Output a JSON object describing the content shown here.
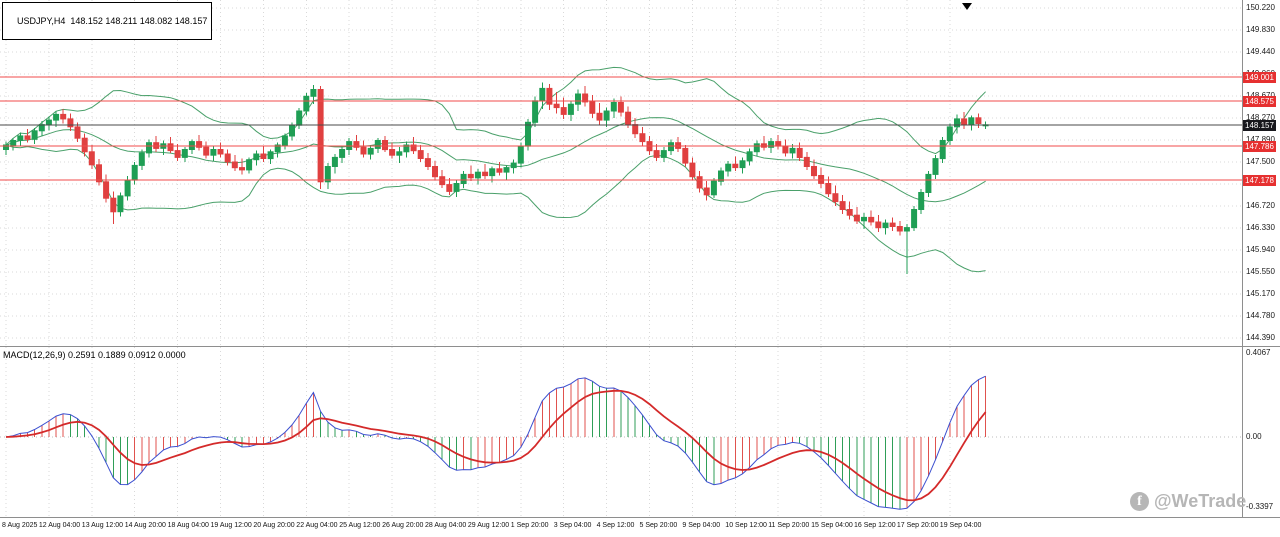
{
  "header": {
    "symbol_info": "USDJPY,H4  148.152 148.211 148.082 148.157"
  },
  "macd": {
    "label": "MACD(12,26,9) 0.2591 0.1889 0.0912 0.0000",
    "axis": {
      "top": "0.4067",
      "zero": "0.00",
      "bottom": "-0.3397"
    }
  },
  "watermark": {
    "text": "@WeTrade",
    "icon": "facebook-icon"
  },
  "price_axis": {
    "ticks": [
      "150.220",
      "149.830",
      "149.440",
      "149.060",
      "148.670",
      "148.270",
      "147.890",
      "147.500",
      "147.110",
      "146.720",
      "146.330",
      "145.940",
      "145.550",
      "145.170",
      "144.780",
      "144.390"
    ],
    "level_labels": [
      "149.001",
      "148.575",
      "147.786",
      "147.178"
    ],
    "bid_label": "148.157"
  },
  "time_axis": {
    "labels": [
      "8 Aug 2025",
      "12 Aug 04:00",
      "13 Aug 12:00",
      "14 Aug 20:00",
      "18 Aug 04:00",
      "19 Aug 12:00",
      "20 Aug 20:00",
      "22 Aug 04:00",
      "25 Aug 12:00",
      "26 Aug 20:00",
      "28 Aug 04:00",
      "29 Aug 12:00",
      "1 Sep 20:00",
      "3 Sep 04:00",
      "4 Sep 12:00",
      "5 Sep 20:00",
      "9 Sep 04:00",
      "10 Sep 12:00",
      "11 Sep 20:00",
      "15 Sep 04:00",
      "16 Sep 12:00",
      "17 Sep 20:00",
      "19 Sep 04:00"
    ]
  },
  "colors": {
    "up": "#1f9e54",
    "down": "#e04040",
    "bollinger": "#4aa06a",
    "grid": "#d9d9d9",
    "level_line": "#f04b4b",
    "bid_line": "#4a4a4a",
    "macd_line": "#3c50d0",
    "signal_line": "#d42a2a",
    "hist_rising": "#e0524e",
    "hist_falling": "#2f9e57",
    "level_label_bg": "#e63030",
    "bid_label_bg": "#17171c",
    "watermark": "#b6b6b6"
  },
  "chart_data": {
    "type": "candlestick",
    "symbol": "USDJPY",
    "timeframe": "H4",
    "ylim": [
      144.39,
      150.22
    ],
    "grid": true,
    "label_every": 6,
    "bollinger": {
      "period": 20,
      "deviation": 2
    },
    "macd": {
      "fast": 12,
      "slow": 26,
      "signal": 9,
      "range": [
        -0.3397,
        0.4067
      ]
    },
    "levels": [
      149.001,
      148.575,
      147.786,
      147.178
    ],
    "bid": 148.157,
    "ohlc_current": [
      148.152,
      148.211,
      148.082,
      148.157
    ],
    "candles": [
      [
        147.72,
        147.86,
        147.62,
        147.8
      ],
      [
        147.8,
        147.92,
        147.7,
        147.88
      ],
      [
        147.88,
        148.02,
        147.78,
        147.96
      ],
      [
        147.96,
        148.08,
        147.84,
        147.9
      ],
      [
        147.9,
        148.1,
        147.82,
        148.05
      ],
      [
        148.05,
        148.22,
        147.96,
        148.16
      ],
      [
        148.16,
        148.3,
        148.06,
        148.24
      ],
      [
        148.24,
        148.4,
        148.12,
        148.34
      ],
      [
        148.34,
        148.44,
        148.18,
        148.26
      ],
      [
        148.26,
        148.36,
        148.05,
        148.12
      ],
      [
        148.12,
        148.2,
        147.85,
        147.92
      ],
      [
        147.92,
        148.0,
        147.6,
        147.68
      ],
      [
        147.68,
        147.8,
        147.38,
        147.45
      ],
      [
        147.45,
        147.55,
        147.08,
        147.15
      ],
      [
        147.15,
        147.28,
        146.78,
        146.86
      ],
      [
        146.86,
        146.98,
        146.4,
        146.62
      ],
      [
        146.62,
        146.96,
        146.54,
        146.9
      ],
      [
        146.9,
        147.25,
        146.82,
        147.18
      ],
      [
        147.18,
        147.5,
        147.1,
        147.44
      ],
      [
        147.44,
        147.72,
        147.36,
        147.66
      ],
      [
        147.66,
        147.9,
        147.58,
        147.84
      ],
      [
        147.84,
        147.96,
        147.68,
        147.74
      ],
      [
        147.74,
        147.88,
        147.62,
        147.82
      ],
      [
        147.82,
        147.94,
        147.66,
        147.7
      ],
      [
        147.7,
        147.82,
        147.52,
        147.58
      ],
      [
        147.58,
        147.76,
        147.5,
        147.72
      ],
      [
        147.72,
        147.9,
        147.64,
        147.86
      ],
      [
        147.86,
        147.98,
        147.7,
        147.76
      ],
      [
        147.76,
        147.86,
        147.56,
        147.62
      ],
      [
        147.62,
        147.78,
        147.52,
        147.72
      ],
      [
        147.72,
        147.84,
        147.58,
        147.64
      ],
      [
        147.64,
        147.72,
        147.44,
        147.5
      ],
      [
        147.5,
        147.62,
        147.34,
        147.4
      ],
      [
        147.4,
        147.56,
        147.28,
        147.36
      ],
      [
        147.36,
        147.58,
        147.3,
        147.54
      ],
      [
        147.54,
        147.7,
        147.44,
        147.64
      ],
      [
        147.64,
        147.78,
        147.5,
        147.56
      ],
      [
        147.56,
        147.72,
        147.46,
        147.68
      ],
      [
        147.68,
        147.84,
        147.58,
        147.8
      ],
      [
        147.8,
        148.0,
        147.72,
        147.96
      ],
      [
        147.96,
        148.2,
        147.88,
        148.15
      ],
      [
        148.15,
        148.45,
        148.08,
        148.4
      ],
      [
        148.4,
        148.72,
        148.32,
        148.66
      ],
      [
        148.66,
        148.86,
        148.52,
        148.78
      ],
      [
        148.78,
        148.84,
        147.02,
        147.15
      ],
      [
        147.15,
        147.48,
        147.02,
        147.42
      ],
      [
        147.42,
        147.64,
        147.3,
        147.58
      ],
      [
        147.58,
        147.78,
        147.48,
        147.72
      ],
      [
        147.72,
        147.92,
        147.62,
        147.86
      ],
      [
        147.86,
        147.98,
        147.7,
        147.76
      ],
      [
        147.76,
        147.88,
        147.58,
        147.64
      ],
      [
        147.64,
        147.8,
        147.54,
        147.74
      ],
      [
        147.74,
        147.92,
        147.66,
        147.88
      ],
      [
        147.88,
        147.96,
        147.68,
        147.72
      ],
      [
        147.72,
        147.84,
        147.56,
        147.62
      ],
      [
        147.62,
        147.76,
        147.48,
        147.68
      ],
      [
        147.68,
        147.86,
        147.58,
        147.8
      ],
      [
        147.8,
        147.94,
        147.64,
        147.7
      ],
      [
        147.7,
        147.8,
        147.5,
        147.56
      ],
      [
        147.56,
        147.66,
        147.36,
        147.42
      ],
      [
        147.42,
        147.52,
        147.18,
        147.24
      ],
      [
        147.24,
        147.36,
        147.04,
        147.1
      ],
      [
        147.1,
        147.22,
        146.92,
        146.98
      ],
      [
        146.98,
        147.18,
        146.88,
        147.12
      ],
      [
        147.12,
        147.34,
        147.04,
        147.28
      ],
      [
        147.28,
        147.44,
        147.16,
        147.22
      ],
      [
        147.22,
        147.38,
        147.1,
        147.32
      ],
      [
        147.32,
        147.46,
        147.2,
        147.26
      ],
      [
        147.26,
        147.42,
        147.14,
        147.38
      ],
      [
        147.38,
        147.5,
        147.26,
        147.32
      ],
      [
        147.32,
        147.44,
        147.18,
        147.4
      ],
      [
        147.4,
        147.54,
        147.3,
        147.48
      ],
      [
        147.48,
        147.84,
        147.4,
        147.78
      ],
      [
        147.78,
        148.26,
        147.7,
        148.2
      ],
      [
        148.2,
        148.66,
        148.12,
        148.58
      ],
      [
        148.58,
        148.9,
        148.44,
        148.8
      ],
      [
        148.8,
        148.88,
        148.42,
        148.52
      ],
      [
        148.52,
        148.74,
        148.36,
        148.46
      ],
      [
        148.46,
        148.64,
        148.26,
        148.34
      ],
      [
        148.34,
        148.58,
        148.22,
        148.52
      ],
      [
        148.52,
        148.78,
        148.4,
        148.7
      ],
      [
        148.7,
        148.84,
        148.48,
        148.56
      ],
      [
        148.56,
        148.68,
        148.28,
        148.36
      ],
      [
        148.36,
        148.54,
        148.16,
        148.24
      ],
      [
        148.24,
        148.46,
        148.12,
        148.4
      ],
      [
        148.4,
        148.62,
        148.28,
        148.55
      ],
      [
        148.55,
        148.66,
        148.3,
        148.38
      ],
      [
        148.38,
        148.48,
        148.1,
        148.16
      ],
      [
        148.16,
        148.28,
        147.92,
        148.0
      ],
      [
        148.0,
        148.12,
        147.78,
        147.86
      ],
      [
        147.86,
        147.96,
        147.62,
        147.7
      ],
      [
        147.7,
        147.82,
        147.52,
        147.58
      ],
      [
        147.58,
        147.76,
        147.5,
        147.7
      ],
      [
        147.7,
        147.9,
        147.62,
        147.84
      ],
      [
        147.84,
        147.94,
        147.68,
        147.74
      ],
      [
        147.74,
        147.8,
        147.42,
        147.48
      ],
      [
        147.48,
        147.58,
        147.18,
        147.24
      ],
      [
        147.24,
        147.34,
        146.96,
        147.04
      ],
      [
        147.04,
        147.16,
        146.82,
        146.92
      ],
      [
        146.92,
        147.22,
        146.86,
        147.16
      ],
      [
        147.16,
        147.4,
        147.08,
        147.34
      ],
      [
        147.34,
        147.52,
        147.24,
        147.46
      ],
      [
        147.46,
        147.6,
        147.34,
        147.4
      ],
      [
        147.4,
        147.58,
        147.3,
        147.52
      ],
      [
        147.52,
        147.74,
        147.44,
        147.68
      ],
      [
        147.68,
        147.88,
        147.6,
        147.82
      ],
      [
        147.82,
        147.96,
        147.7,
        147.76
      ],
      [
        147.76,
        147.92,
        147.66,
        147.86
      ],
      [
        147.86,
        147.98,
        147.72,
        147.78
      ],
      [
        147.78,
        147.9,
        147.6,
        147.66
      ],
      [
        147.66,
        147.82,
        147.56,
        147.74
      ],
      [
        147.74,
        147.84,
        147.52,
        147.58
      ],
      [
        147.58,
        147.68,
        147.36,
        147.42
      ],
      [
        147.42,
        147.54,
        147.2,
        147.26
      ],
      [
        147.26,
        147.4,
        147.04,
        147.12
      ],
      [
        147.12,
        147.24,
        146.88,
        146.94
      ],
      [
        146.94,
        147.08,
        146.72,
        146.8
      ],
      [
        146.8,
        146.92,
        146.58,
        146.66
      ],
      [
        146.66,
        146.8,
        146.48,
        146.56
      ],
      [
        146.56,
        146.7,
        146.4,
        146.46
      ],
      [
        146.46,
        146.6,
        146.32,
        146.52
      ],
      [
        146.52,
        146.64,
        146.38,
        146.44
      ],
      [
        146.44,
        146.56,
        146.26,
        146.34
      ],
      [
        146.34,
        146.48,
        146.22,
        146.42
      ],
      [
        146.42,
        146.52,
        146.28,
        146.36
      ],
      [
        146.36,
        146.46,
        146.2,
        146.28
      ],
      [
        146.28,
        146.4,
        145.52,
        146.34
      ],
      [
        146.34,
        146.72,
        146.28,
        146.66
      ],
      [
        146.66,
        147.02,
        146.58,
        146.96
      ],
      [
        146.96,
        147.34,
        146.88,
        147.28
      ],
      [
        147.28,
        147.62,
        147.2,
        147.56
      ],
      [
        147.56,
        147.94,
        147.48,
        147.88
      ],
      [
        147.88,
        148.18,
        147.8,
        148.12
      ],
      [
        148.12,
        148.34,
        148.0,
        148.26
      ],
      [
        148.26,
        148.38,
        148.08,
        148.16
      ],
      [
        148.16,
        148.32,
        148.06,
        148.28
      ],
      [
        148.28,
        148.36,
        148.1,
        148.18
      ],
      [
        148.152,
        148.211,
        148.082,
        148.157
      ]
    ]
  }
}
